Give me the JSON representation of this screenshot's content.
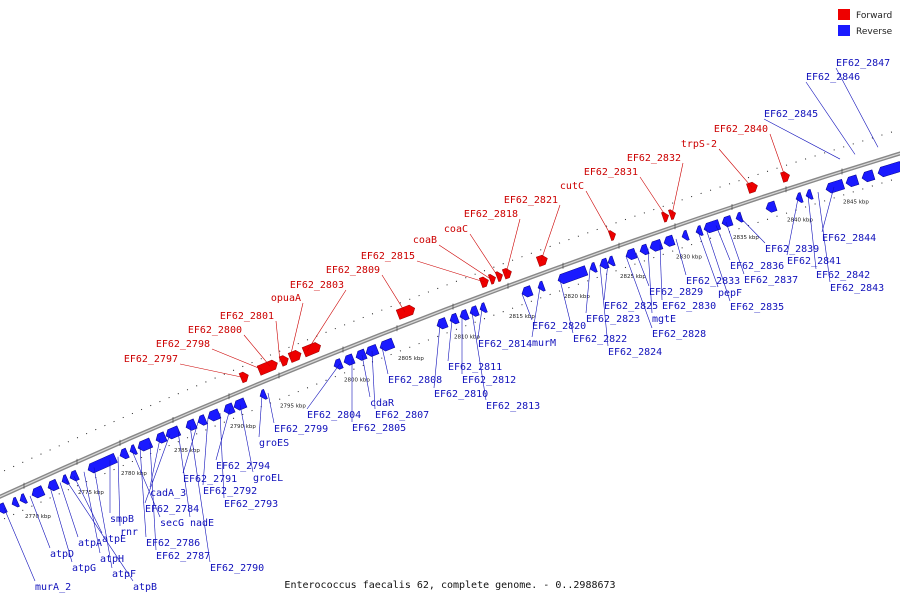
{
  "caption": "Enterococcus faecalis 62, complete genome. - 0..2988673",
  "legend": [
    {
      "label": "Forward",
      "color": "#ee0000"
    },
    {
      "label": "Reverse",
      "color": "#1a1aff"
    }
  ],
  "colors": {
    "forward": "#ee0000",
    "reverse": "#1a1aff",
    "forward_label": "#cc0000",
    "reverse_label": "#1111bb",
    "axis": "#666666"
  },
  "ticks": [
    "2770 kbp",
    "2775 kbp",
    "2780 kbp",
    "2785 kbp",
    "2790 kbp",
    "2795 kbp",
    "2800 kbp",
    "2805 kbp",
    "2810 kbp",
    "2815 kbp",
    "2820 kbp",
    "2825 kbp",
    "2830 kbp",
    "2835 kbp",
    "2840 kbp",
    "2845 kbp"
  ],
  "forward_labels": [
    "EF62_2797",
    "EF62_2798",
    "EF62_2800",
    "EF62_2801",
    "opuaA",
    "EF62_2803",
    "EF62_2809",
    "EF62_2815",
    "coaB",
    "coaC",
    "EF62_2818",
    "EF62_2821",
    "cutC",
    "EF62_2831",
    "EF62_2832",
    "trpS-2",
    "EF62_2840"
  ],
  "reverse_labels_top": [
    "EF62_2845",
    "EF62_2846",
    "EF62_2847"
  ],
  "reverse_labels": [
    "murA_2",
    "atpB",
    "atpD",
    "atpG",
    "atpA",
    "atpE",
    "atpH",
    "atpF",
    "smpB",
    "rnr",
    "secG",
    "EF62_2786",
    "EF62_2787",
    "cadA_3",
    "EF62_2784",
    "nadE",
    "EF62_2790",
    "EF62_2791",
    "EF62_2792",
    "EF62_2793",
    "EF62_2794",
    "groEL",
    "groES",
    "EF62_2799",
    "EF62_2804",
    "EF62_2805",
    "cdaR",
    "EF62_2807",
    "EF62_2808",
    "EF62_2810",
    "EF62_2811",
    "EF62_2812",
    "EF62_2813",
    "EF62_2814",
    "EF62_2820",
    "murM",
    "EF62_2822",
    "EF62_2823",
    "EF62_2824",
    "EF62_2825",
    "EF62_2828",
    "EF62_2829",
    "mgtE",
    "EF62_2830",
    "EF62_2833",
    "pepF",
    "EF62_2835",
    "EF62_2836",
    "EF62_2837",
    "EF62_2839",
    "EF62_2841",
    "EF62_2842",
    "EF62_2843",
    "EF62_2844"
  ]
}
